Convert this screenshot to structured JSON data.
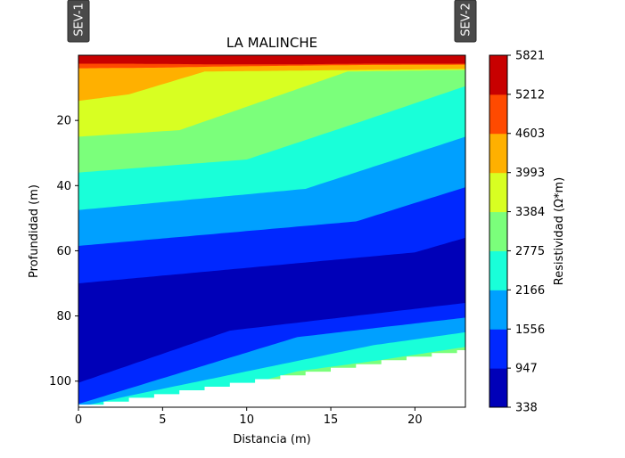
{
  "chart_data": {
    "type": "contour",
    "title": "LA MALINCHE",
    "xlabel": "Distancia (m)",
    "ylabel": "Profundidad (m)",
    "colorbar_label": "Resistividad (Ω*m)",
    "xlim": [
      0,
      23
    ],
    "ylim": [
      108,
      0
    ],
    "y_inverted": true,
    "xticks": [
      0,
      5,
      10,
      15,
      20
    ],
    "yticks": [
      20,
      40,
      60,
      80,
      100
    ],
    "levels": [
      338,
      947,
      1556,
      2166,
      2775,
      3384,
      3993,
      4603,
      5212,
      5821
    ],
    "colorbar_ticks": [
      "338",
      "947",
      "1556",
      "2166",
      "2775",
      "3384",
      "3993",
      "4603",
      "5212",
      "5821"
    ],
    "band_colors": [
      "#0000b8",
      "#0028ff",
      "#00a0ff",
      "#19ffd9",
      "#7bff7b",
      "#d8ff22",
      "#ffb000",
      "#ff4a00",
      "#c80000"
    ],
    "sev_labels": [
      {
        "label": "SEV-1",
        "x": 0
      },
      {
        "label": "SEV-2",
        "x": 23
      }
    ],
    "boundaries": [
      {
        "level": 5212,
        "points": [
          [
            0,
            2.6
          ],
          [
            3,
            2.6
          ],
          [
            8,
            2.8
          ],
          [
            13,
            2.8
          ],
          [
            17,
            2.6
          ],
          [
            23,
            2.6
          ]
        ]
      },
      {
        "level": 4603,
        "points": [
          [
            0,
            4.0
          ],
          [
            5,
            3.8
          ],
          [
            8,
            3.5
          ],
          [
            13,
            3.2
          ],
          [
            17,
            3.0
          ],
          [
            23,
            2.9
          ]
        ]
      },
      {
        "level": 3993,
        "points": [
          [
            0,
            14
          ],
          [
            3,
            12
          ],
          [
            7.5,
            5
          ],
          [
            17,
            4.5
          ],
          [
            23,
            4.2
          ]
        ]
      },
      {
        "level": 3384,
        "points": [
          [
            0,
            25
          ],
          [
            6,
            23
          ],
          [
            16,
            5
          ],
          [
            23,
            4.5
          ]
        ]
      },
      {
        "level": 2775,
        "points": [
          [
            0,
            36
          ],
          [
            10,
            32
          ],
          [
            17,
            20
          ],
          [
            23,
            9.5
          ]
        ]
      },
      {
        "level": 2166,
        "points": [
          [
            0,
            47.5
          ],
          [
            13.5,
            41
          ],
          [
            23,
            25
          ]
        ]
      },
      {
        "level": 1556,
        "points": [
          [
            0,
            58.5
          ],
          [
            16.5,
            51
          ],
          [
            23,
            40.5
          ]
        ]
      },
      {
        "level": 947,
        "points": [
          [
            0,
            70
          ],
          [
            20,
            60.5
          ],
          [
            23,
            56
          ]
        ]
      },
      {
        "level": 338,
        "points": [
          [
            0,
            90.5
          ],
          [
            4.5,
            82.5
          ],
          [
            23,
            72
          ]
        ]
      }
    ],
    "upper_boundaries_deep": [
      {
        "level": 947,
        "points": [
          [
            0,
            100.5
          ],
          [
            9,
            84.5
          ],
          [
            23,
            76
          ]
        ]
      },
      {
        "level": 1556,
        "points": [
          [
            0,
            107
          ],
          [
            13,
            86.5
          ],
          [
            23,
            80.5
          ]
        ]
      },
      {
        "level": 2166,
        "points": [
          [
            0,
            108
          ],
          [
            3,
            104.5
          ],
          [
            17.5,
            89
          ],
          [
            23,
            85
          ]
        ]
      },
      {
        "level": 2775,
        "points": [
          [
            5,
            108
          ],
          [
            13,
            97
          ],
          [
            18,
            93.5
          ],
          [
            23,
            89.5
          ]
        ]
      },
      {
        "level": 3384,
        "points": [
          [
            22.5,
            108
          ],
          [
            23,
            89.5
          ]
        ]
      }
    ],
    "data_bottom": [
      [
        0,
        107.2
      ],
      [
        1.5,
        107.2
      ],
      [
        1.5,
        106.3
      ],
      [
        3,
        106.3
      ],
      [
        3,
        105.1
      ],
      [
        4.5,
        105.1
      ],
      [
        4.5,
        104.0
      ],
      [
        6,
        104.0
      ],
      [
        6,
        102.8
      ],
      [
        7.5,
        102.8
      ],
      [
        7.5,
        101.7
      ],
      [
        9,
        101.7
      ],
      [
        9,
        100.5
      ],
      [
        10.5,
        100.5
      ],
      [
        10.5,
        99.4
      ],
      [
        12,
        99.4
      ],
      [
        12,
        98.2
      ],
      [
        13.5,
        98.2
      ],
      [
        13.5,
        97.1
      ],
      [
        15,
        97.1
      ],
      [
        15,
        95.9
      ],
      [
        16.5,
        95.9
      ],
      [
        16.5,
        94.8
      ],
      [
        18,
        94.8
      ],
      [
        18,
        93.6
      ],
      [
        19.5,
        93.6
      ],
      [
        19.5,
        92.5
      ],
      [
        21,
        92.5
      ],
      [
        21,
        91.4
      ],
      [
        22.5,
        91.4
      ],
      [
        22.5,
        90.5
      ],
      [
        23,
        90.5
      ]
    ]
  }
}
